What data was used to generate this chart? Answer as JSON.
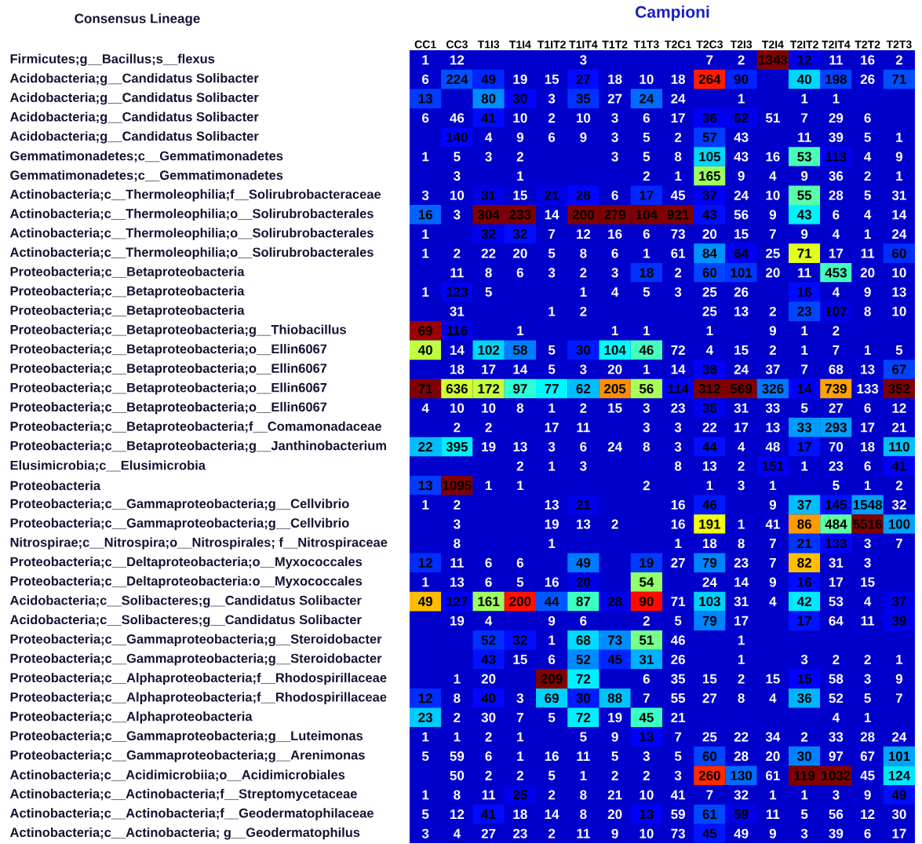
{
  "chart_data": {
    "type": "heatmap",
    "xlabel": "Campioni",
    "ylabel": "Consensus Lineage",
    "categories": [
      "CC1",
      "CC3",
      "T1I3",
      "T1I4",
      "T1IT2",
      "T1IT4",
      "T1T2",
      "T1T3",
      "T2C1",
      "T2C3",
      "T2I3",
      "T2I4",
      "T2IT2",
      "T2IT4",
      "T2T2",
      "T2T3"
    ],
    "y_categories": [
      "Firmicutes;g__Bacillus;s__flexus",
      "Acidobacteria;g__Candidatus Solibacter",
      "Acidobacteria;g__Candidatus Solibacter",
      "Acidobacteria;g__Candidatus Solibacter",
      "Acidobacteria;g__Candidatus Solibacter",
      "Gemmatimonadetes;c__Gemmatimonadetes",
      "Gemmatimonadetes;c__Gemmatimonadetes",
      "Actinobacteria;c__Thermoleophilia;f__Solirubrobacteraceae",
      "Actinobacteria;c__Thermoleophilia;o__Solirubrobacterales",
      "Actinobacteria;c__Thermoleophilia;o__Solirubrobacterales",
      "Actinobacteria;c__Thermoleophilia;o__Solirubrobacterales",
      "Proteobacteria;c__Betaproteobacteria",
      "Proteobacteria;c__Betaproteobacteria",
      "Proteobacteria;c__Betaproteobacteria",
      "Proteobacteria;c__Betaproteobacteria;g__Thiobacillus",
      "Proteobacteria;c__Betaproteobacteria;o__Ellin6067",
      "Proteobacteria;c__Betaproteobacteria;o__Ellin6067",
      "Proteobacteria;c__Betaproteobacteria;o__Ellin6067",
      "Proteobacteria;c__Betaproteobacteria;o__Ellin6067",
      "Proteobacteria;c__Betaproteobacteria;f__Comamonadaceae",
      "Proteobacteria;c__Betaproteobacteria;g__Janthinobacterium",
      "Elusimicrobia;c__Elusimicrobia",
      "Proteobacteria",
      "Proteobacteria;c__Gammaproteobacteria;g__Cellvibrio",
      "Proteobacteria;c__Gammaproteobacteria;g__Cellvibrio",
      "Nitrospirae;c__Nitrospira;o__Nitrospirales; f__Nitrospiraceae",
      "Proteobacteria;c__Deltaproteobacteria;o__Myxococcales",
      "Proteobacteria;c__Deltaproteobacteria:o__Myxococcales",
      "Acidobacteria;c__Solibacteres;g__Candidatus Solibacter",
      "Acidobacteria;c__Solibacteres;g__Candidatus Solibacter",
      "Proteobacteria;c__Gammaproteobacteria;g__Steroidobacter",
      "Proteobacteria;c__Gammaproteobacteria;g__Steroidobacter",
      "Proteobacteria;c__Alphaproteobacteria;f__Rhodospirillaceae",
      "Proteobacteria;c__Alphaproteobacteria;f__Rhodospirillaceae",
      "Proteobacteria;c__Alphaproteobacteria",
      "Proteobacteria;c__Gammaproteobacteria;g__Luteimonas",
      "Proteobacteria;c__Gammaproteobacteria;g__Arenimonas",
      "Actinobacteria;c__Acidimicrobiia;o__Acidimicrobiales",
      "Actinobacteria;c__Actinobacteria;f__Streptomycetaceae",
      "Actinobacteria;c__Actinobacteria;f__Geodermatophilaceae",
      "Actinobacteria;c__Actinobacteria; g__Geodermatophilus"
    ],
    "cells": [
      [
        1,
        12,
        null,
        null,
        null,
        3,
        null,
        null,
        null,
        7,
        2,
        1343,
        12,
        11,
        16,
        2
      ],
      [
        6,
        224,
        49,
        19,
        15,
        27,
        18,
        10,
        18,
        264,
        90,
        null,
        40,
        198,
        26,
        71
      ],
      [
        13,
        null,
        80,
        30,
        3,
        35,
        27,
        24,
        24,
        null,
        1,
        null,
        1,
        1,
        null,
        null
      ],
      [
        6,
        46,
        41,
        10,
        2,
        10,
        3,
        6,
        17,
        36,
        62,
        51,
        7,
        29,
        6,
        null
      ],
      [
        null,
        140,
        4,
        9,
        6,
        9,
        3,
        5,
        2,
        57,
        43,
        null,
        11,
        39,
        5,
        1
      ],
      [
        1,
        5,
        3,
        2,
        null,
        null,
        3,
        5,
        8,
        105,
        43,
        16,
        53,
        113,
        4,
        9
      ],
      [
        null,
        3,
        null,
        1,
        null,
        null,
        null,
        2,
        1,
        165,
        9,
        4,
        9,
        36,
        2,
        1
      ],
      [
        3,
        10,
        31,
        15,
        21,
        26,
        6,
        17,
        45,
        37,
        24,
        10,
        55,
        28,
        5,
        31
      ],
      [
        16,
        3,
        304,
        233,
        14,
        200,
        279,
        104,
        921,
        43,
        56,
        9,
        43,
        6,
        4,
        14
      ],
      [
        1,
        null,
        32,
        32,
        7,
        12,
        16,
        6,
        73,
        20,
        15,
        7,
        9,
        4,
        1,
        24
      ],
      [
        1,
        2,
        22,
        20,
        5,
        8,
        6,
        1,
        61,
        84,
        64,
        25,
        71,
        17,
        11,
        60
      ],
      [
        null,
        11,
        8,
        6,
        3,
        2,
        3,
        18,
        2,
        60,
        101,
        20,
        11,
        453,
        20,
        10
      ],
      [
        1,
        123,
        5,
        null,
        null,
        1,
        4,
        5,
        3,
        25,
        26,
        null,
        16,
        4,
        9,
        13
      ],
      [
        null,
        31,
        null,
        null,
        1,
        2,
        null,
        null,
        null,
        25,
        13,
        2,
        23,
        107,
        8,
        10
      ],
      [
        69,
        116,
        null,
        1,
        null,
        null,
        1,
        1,
        null,
        1,
        null,
        9,
        1,
        2,
        null,
        null
      ],
      [
        40,
        14,
        102,
        58,
        5,
        30,
        104,
        46,
        72,
        4,
        15,
        2,
        1,
        7,
        1,
        5
      ],
      [
        null,
        18,
        17,
        14,
        5,
        3,
        20,
        1,
        14,
        38,
        24,
        37,
        7,
        68,
        13,
        67
      ],
      [
        71,
        636,
        172,
        97,
        77,
        62,
        205,
        56,
        114,
        312,
        569,
        326,
        14,
        739,
        133,
        352
      ],
      [
        4,
        10,
        10,
        8,
        1,
        2,
        15,
        3,
        23,
        35,
        31,
        33,
        5,
        27,
        6,
        12
      ],
      [
        null,
        2,
        2,
        null,
        17,
        11,
        null,
        3,
        3,
        22,
        17,
        13,
        33,
        293,
        17,
        21
      ],
      [
        22,
        395,
        19,
        13,
        3,
        6,
        24,
        8,
        3,
        44,
        4,
        48,
        17,
        70,
        18,
        110
      ],
      [
        null,
        null,
        null,
        2,
        1,
        3,
        null,
        null,
        8,
        13,
        2,
        151,
        1,
        23,
        6,
        41
      ],
      [
        13,
        1095,
        1,
        1,
        null,
        null,
        null,
        2,
        null,
        1,
        3,
        1,
        null,
        5,
        1,
        2
      ],
      [
        1,
        2,
        null,
        null,
        13,
        21,
        null,
        null,
        16,
        46,
        null,
        9,
        37,
        145,
        1548,
        32
      ],
      [
        null,
        3,
        null,
        null,
        19,
        13,
        2,
        null,
        16,
        191,
        1,
        41,
        86,
        484,
        5516,
        100
      ],
      [
        null,
        8,
        null,
        null,
        1,
        null,
        null,
        null,
        1,
        18,
        8,
        7,
        21,
        133,
        3,
        7
      ],
      [
        12,
        11,
        6,
        6,
        null,
        49,
        null,
        19,
        27,
        79,
        23,
        7,
        82,
        31,
        3,
        null
      ],
      [
        1,
        13,
        6,
        5,
        16,
        20,
        null,
        54,
        null,
        24,
        14,
        9,
        16,
        17,
        15,
        null
      ],
      [
        49,
        127,
        161,
        200,
        44,
        87,
        28,
        90,
        71,
        103,
        31,
        4,
        42,
        53,
        4,
        37
      ],
      [
        null,
        19,
        4,
        null,
        9,
        6,
        null,
        2,
        5,
        79,
        17,
        null,
        17,
        64,
        11,
        39
      ],
      [
        null,
        null,
        52,
        32,
        1,
        68,
        73,
        51,
        46,
        null,
        1,
        null,
        null,
        null,
        null,
        null
      ],
      [
        null,
        null,
        43,
        15,
        6,
        52,
        45,
        31,
        26,
        null,
        1,
        null,
        3,
        2,
        2,
        1
      ],
      [
        null,
        1,
        20,
        null,
        209,
        72,
        null,
        6,
        35,
        15,
        2,
        15,
        15,
        58,
        3,
        9
      ],
      [
        12,
        8,
        40,
        3,
        69,
        30,
        88,
        7,
        55,
        27,
        8,
        4,
        36,
        52,
        5,
        7
      ],
      [
        23,
        2,
        30,
        7,
        5,
        72,
        19,
        45,
        21,
        null,
        null,
        null,
        null,
        4,
        1,
        null
      ],
      [
        1,
        1,
        2,
        1,
        null,
        5,
        9,
        13,
        7,
        25,
        22,
        34,
        2,
        33,
        28,
        24
      ],
      [
        5,
        59,
        6,
        1,
        16,
        11,
        5,
        3,
        5,
        60,
        28,
        20,
        30,
        97,
        67,
        101
      ],
      [
        null,
        50,
        2,
        2,
        5,
        1,
        2,
        2,
        3,
        260,
        130,
        61,
        119,
        1032,
        45,
        124
      ],
      [
        1,
        8,
        11,
        25,
        2,
        8,
        21,
        10,
        41,
        7,
        32,
        1,
        1,
        3,
        9,
        49
      ],
      [
        5,
        12,
        41,
        18,
        14,
        8,
        20,
        13,
        59,
        61,
        59,
        11,
        5,
        56,
        12,
        30
      ],
      [
        3,
        4,
        27,
        23,
        2,
        11,
        9,
        10,
        73,
        45,
        49,
        9,
        3,
        39,
        6,
        17
      ]
    ],
    "data_labels": true
  }
}
